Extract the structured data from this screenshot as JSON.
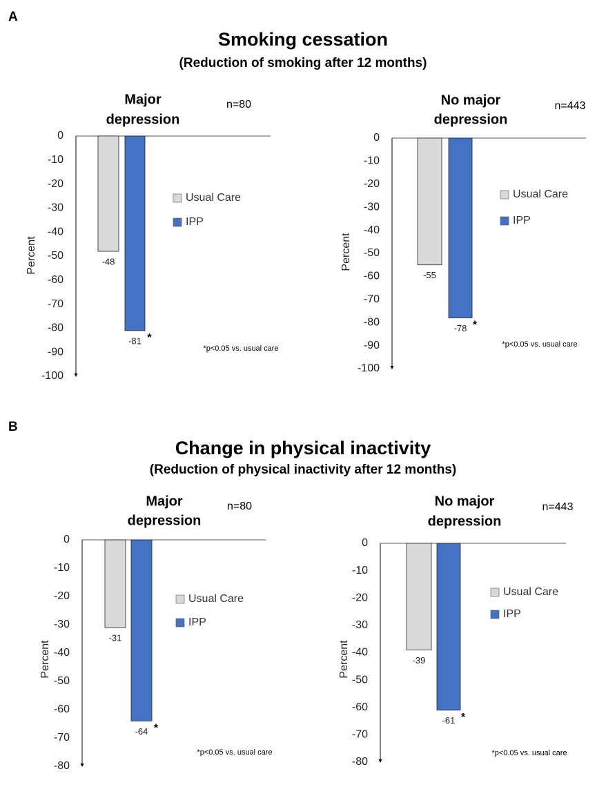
{
  "panels": [
    {
      "letter": "A",
      "title": "Smoking cessation",
      "subtitle": "(Reduction of smoking after 12 months)"
    },
    {
      "letter": "B",
      "title": "Change in physical inactivity",
      "subtitle": "(Reduction of physical inactivity after 12 months)"
    }
  ],
  "colors": {
    "usual_care": "#d9d9d9",
    "ipp": "#4472c4",
    "axis": "#000000",
    "tick_text": "#222222"
  },
  "chart_data": [
    {
      "type": "bar",
      "group_title": "Major depression",
      "n_label": "n=80",
      "ylabel": "Percent",
      "ylim": [
        -100,
        0
      ],
      "y_ticks": [
        0,
        -10,
        -20,
        -30,
        -40,
        -50,
        -60,
        -70,
        -80,
        -90,
        -100
      ],
      "series": [
        {
          "name": "Usual Care",
          "value": -48,
          "label": "-48",
          "significant": false
        },
        {
          "name": "IPP",
          "value": -81,
          "label": "-81",
          "significant": true
        }
      ],
      "significance_marker": "*",
      "footnote": "*p<0.05 vs. usual care",
      "legend_position": "right"
    },
    {
      "type": "bar",
      "group_title": "No major depression",
      "n_label": "n=443",
      "ylabel": "Percent",
      "ylim": [
        -100,
        0
      ],
      "y_ticks": [
        0,
        -10,
        -20,
        -30,
        -40,
        -50,
        -60,
        -70,
        -80,
        -90,
        -100
      ],
      "series": [
        {
          "name": "Usual Care",
          "value": -55,
          "label": "-55",
          "significant": false
        },
        {
          "name": "IPP",
          "value": -78,
          "label": "-78",
          "significant": true
        }
      ],
      "significance_marker": "*",
      "footnote": "*p<0.05 vs. usual care",
      "legend_position": "right"
    },
    {
      "type": "bar",
      "group_title": "Major depression",
      "n_label": "n=80",
      "ylabel": "Percent",
      "ylim": [
        -80,
        0
      ],
      "y_ticks": [
        0,
        -10,
        -20,
        -30,
        -40,
        -50,
        -60,
        -70,
        -80
      ],
      "series": [
        {
          "name": "Usual Care",
          "value": -31,
          "label": "-31",
          "significant": false
        },
        {
          "name": "IPP",
          "value": -64,
          "label": "-64",
          "significant": true
        }
      ],
      "significance_marker": "*",
      "footnote": "*p<0.05 vs. usual care",
      "legend_position": "right"
    },
    {
      "type": "bar",
      "group_title": "No major depression",
      "n_label": "n=443",
      "ylabel": "Percent",
      "ylim": [
        -80,
        0
      ],
      "y_ticks": [
        0,
        -10,
        -20,
        -30,
        -40,
        -50,
        -60,
        -70,
        -80
      ],
      "series": [
        {
          "name": "Usual Care",
          "value": -39,
          "label": "-39",
          "significant": false
        },
        {
          "name": "IPP",
          "value": -61,
          "label": "-61",
          "significant": true
        }
      ],
      "significance_marker": "*",
      "footnote": "*p<0.05 vs. usual care",
      "legend_position": "right"
    }
  ]
}
